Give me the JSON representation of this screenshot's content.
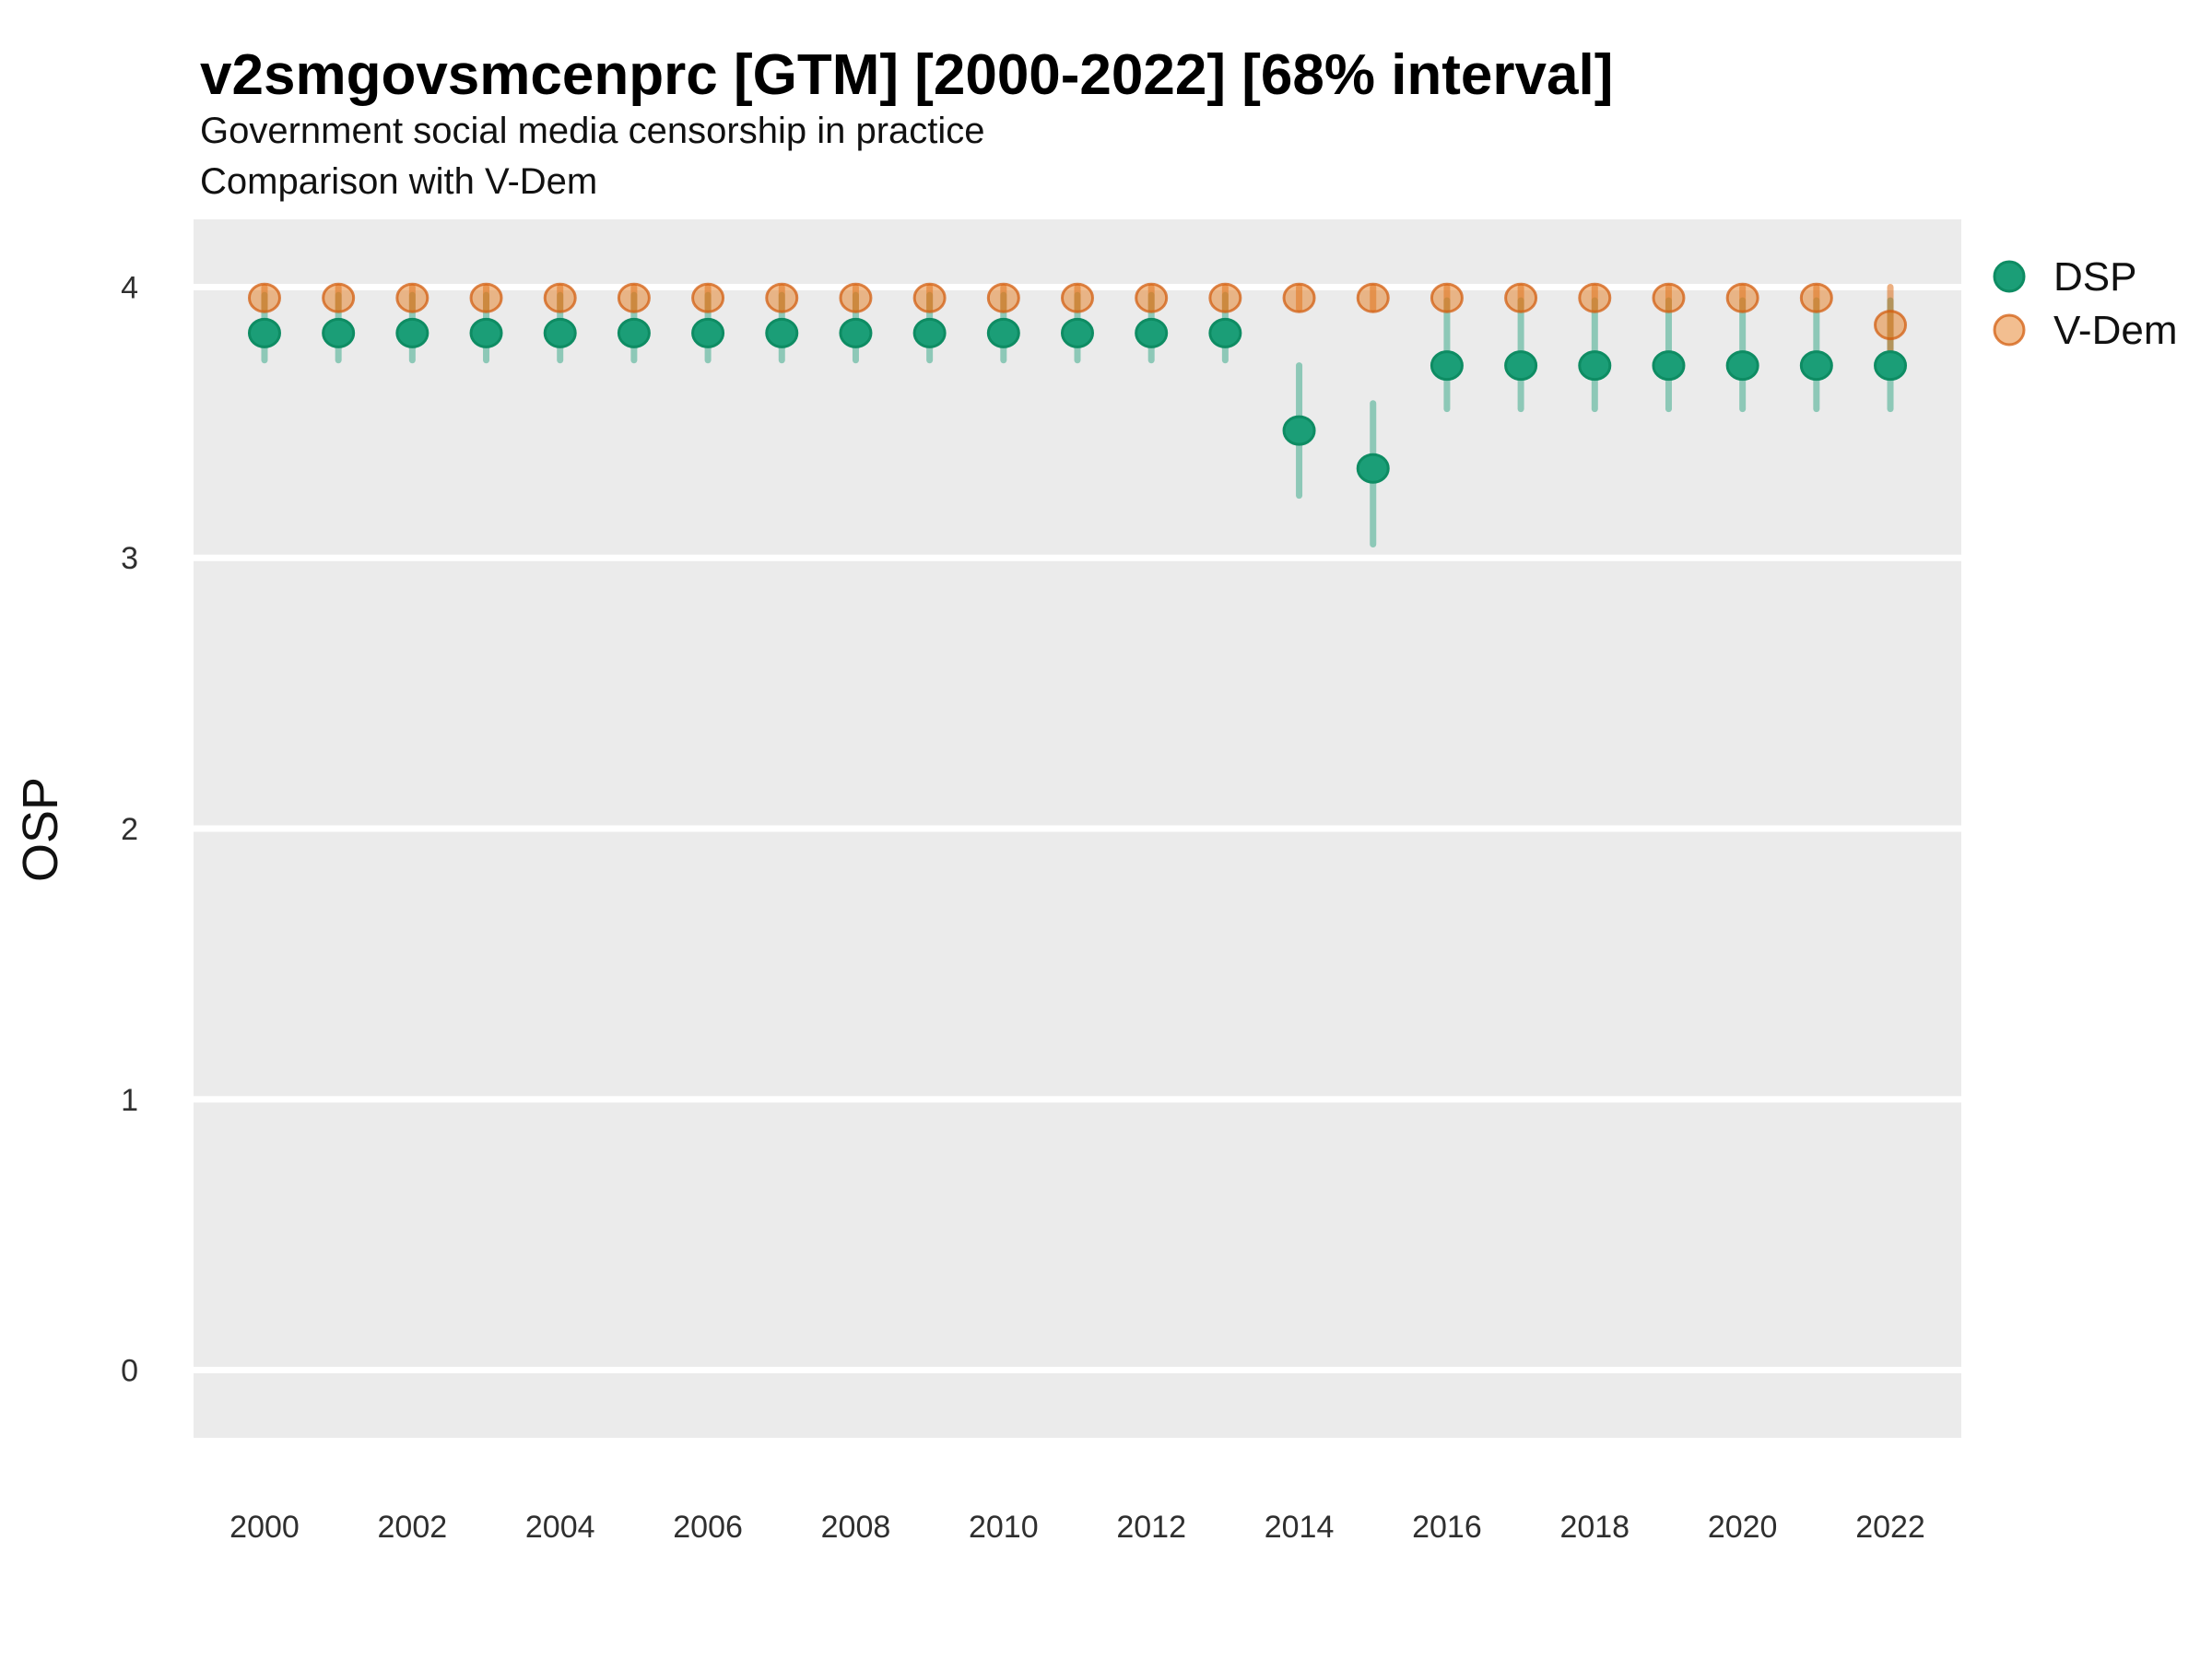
{
  "chart_data": {
    "type": "scatter",
    "title": "v2smgovsmcenprc [GTM] [2000-2022] [68% interval]",
    "subtitle1": "Government social media censorship in practice",
    "subtitle2": "Comparison with V-Dem",
    "ylabel": "OSP",
    "xlabel": "",
    "grid": true,
    "legend_position": "right",
    "panel_color": "#ebebeb",
    "gridline_color": "#ffffff",
    "x": [
      2000,
      2001,
      2002,
      2003,
      2004,
      2005,
      2006,
      2007,
      2008,
      2009,
      2010,
      2011,
      2012,
      2013,
      2014,
      2015,
      2016,
      2017,
      2018,
      2019,
      2020,
      2021,
      2022
    ],
    "xticks": [
      2000,
      2002,
      2004,
      2006,
      2008,
      2010,
      2012,
      2014,
      2016,
      2018,
      2020,
      2022
    ],
    "yticks": [
      0,
      1,
      2,
      3,
      4
    ],
    "ylim": [
      -0.25,
      4.25
    ],
    "xlim": [
      1999.04,
      2022.96
    ],
    "series": [
      {
        "name": "DSP",
        "color": "#1b9e77",
        "point_fill": "#1b9e77",
        "point_stroke": "#0e8c63",
        "bar_color": "rgba(27,158,119,0.45)",
        "est": [
          3.83,
          3.83,
          3.83,
          3.83,
          3.83,
          3.83,
          3.83,
          3.83,
          3.83,
          3.83,
          3.83,
          3.83,
          3.83,
          3.83,
          3.47,
          3.33,
          3.71,
          3.71,
          3.71,
          3.71,
          3.71,
          3.71,
          3.71
        ],
        "lo": [
          3.73,
          3.73,
          3.73,
          3.73,
          3.73,
          3.73,
          3.73,
          3.73,
          3.73,
          3.73,
          3.73,
          3.73,
          3.73,
          3.73,
          3.23,
          3.05,
          3.55,
          3.55,
          3.55,
          3.55,
          3.55,
          3.55,
          3.55
        ],
        "hi": [
          3.97,
          3.97,
          3.97,
          3.97,
          3.97,
          3.97,
          3.97,
          3.97,
          3.97,
          3.97,
          3.97,
          3.97,
          3.97,
          3.97,
          3.71,
          3.57,
          3.95,
          3.95,
          3.95,
          3.95,
          3.95,
          3.95,
          3.95
        ]
      },
      {
        "name": "V-Dem",
        "color": "#d95f02",
        "point_fill": "rgba(230,126,34,0.5)",
        "point_stroke": "rgba(211,94,15,0.75)",
        "bar_color": "rgba(217,95,2,0.5)",
        "est": [
          3.96,
          3.96,
          3.96,
          3.96,
          3.96,
          3.96,
          3.96,
          3.96,
          3.96,
          3.96,
          3.96,
          3.96,
          3.96,
          3.96,
          3.96,
          3.96,
          3.96,
          3.96,
          3.96,
          3.96,
          3.96,
          3.96,
          3.86
        ],
        "lo": [
          3.92,
          3.92,
          3.92,
          3.92,
          3.92,
          3.92,
          3.92,
          3.92,
          3.92,
          3.92,
          3.92,
          3.92,
          3.92,
          3.92,
          3.92,
          3.92,
          3.92,
          3.92,
          3.92,
          3.92,
          3.92,
          3.92,
          3.77
        ],
        "hi": [
          4.0,
          4.0,
          4.0,
          4.0,
          4.0,
          4.0,
          4.0,
          4.0,
          4.0,
          4.0,
          4.0,
          4.0,
          4.0,
          4.0,
          4.0,
          4.0,
          4.0,
          4.0,
          4.0,
          4.0,
          4.0,
          4.0,
          4.0
        ]
      }
    ]
  }
}
